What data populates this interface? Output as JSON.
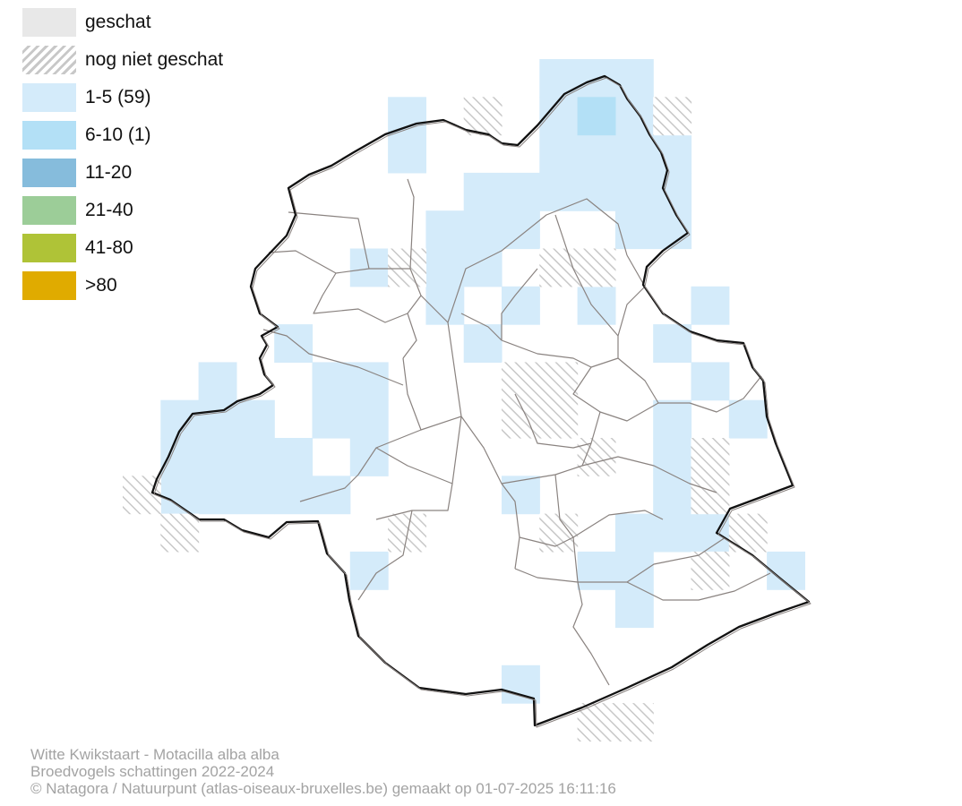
{
  "legend": {
    "items": [
      {
        "label": "geschat",
        "color": "#e8e8e8",
        "pattern": "solid"
      },
      {
        "label": "nog niet geschat",
        "color": "#c8c8c8",
        "pattern": "hatch"
      },
      {
        "label": "1-5 (59)",
        "color": "#d4ebfa",
        "pattern": "solid"
      },
      {
        "label": "6-10 (1)",
        "color": "#b3e0f6",
        "pattern": "solid"
      },
      {
        "label": "11-20",
        "color": "#86bcdc",
        "pattern": "solid"
      },
      {
        "label": "21-40",
        "color": "#9ccd98",
        "pattern": "solid"
      },
      {
        "label": "41-80",
        "color": "#afc337",
        "pattern": "solid"
      },
      {
        "label": ">80",
        "color": "#e0ab00",
        "pattern": "solid"
      }
    ]
  },
  "footer": {
    "species": "Witte Kwikstaart - Motacilla alba alba",
    "survey": "Broedvogels schattingen 2022-2024",
    "credit": "© Natagora / Natuurpunt (atlas-oiseaux-bruxelles.be) gemaakt op 01-07-2025 16:11:16"
  },
  "map": {
    "boundary_color": "#111111",
    "municipality_line_color": "#8a8380"
  }
}
